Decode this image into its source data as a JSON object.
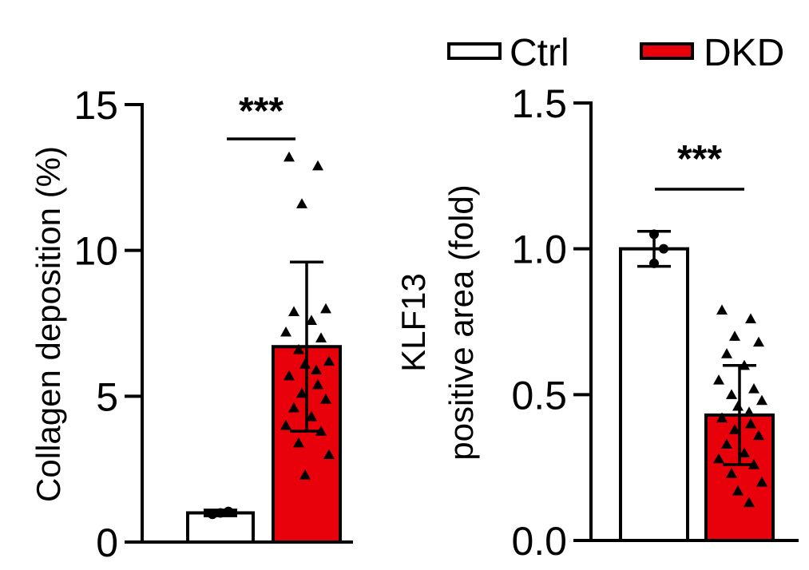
{
  "legend": [
    {
      "label": "Ctrl",
      "color": "#ffffff"
    },
    {
      "label": "DKD",
      "color": "#e8000b"
    }
  ],
  "chart_data": [
    {
      "type": "bar",
      "ylabel": "Collagen deposition (%)",
      "ylim": [
        0,
        15
      ],
      "yticks": [
        "0",
        "5",
        "10",
        "15"
      ],
      "categories": [
        "Ctrl",
        "DKD"
      ],
      "values": [
        1.0,
        6.7
      ],
      "errors": [
        0.1,
        2.9
      ],
      "significance": "***",
      "points": [
        [
          0.95,
          1.0,
          1.05
        ],
        [
          13.2,
          12.9,
          11.6,
          8.0,
          7.9,
          7.6,
          7.2,
          7.0,
          6.6,
          6.2,
          6.1,
          5.9,
          5.7,
          5.4,
          5.1,
          4.9,
          4.6,
          4.3,
          4.0,
          3.8,
          3.4,
          3.0,
          2.3
        ]
      ]
    },
    {
      "type": "bar",
      "ylabel": "KLF13 positive area (fold)",
      "ylabel_lines": [
        "KLF13",
        "positive area (fold)"
      ],
      "ylim": [
        0,
        1.5
      ],
      "yticks": [
        "0.0",
        "0.5",
        "1.0",
        "1.5"
      ],
      "categories": [
        "Ctrl",
        "DKD"
      ],
      "values": [
        1.0,
        0.43
      ],
      "errors": [
        0.06,
        0.17
      ],
      "significance": "***",
      "points": [
        [
          1.05,
          1.0,
          0.95
        ],
        [
          0.79,
          0.76,
          0.7,
          0.68,
          0.64,
          0.6,
          0.55,
          0.52,
          0.5,
          0.48,
          0.46,
          0.44,
          0.42,
          0.4,
          0.38,
          0.36,
          0.33,
          0.3,
          0.28,
          0.26,
          0.23,
          0.2,
          0.17,
          0.13
        ]
      ]
    }
  ]
}
